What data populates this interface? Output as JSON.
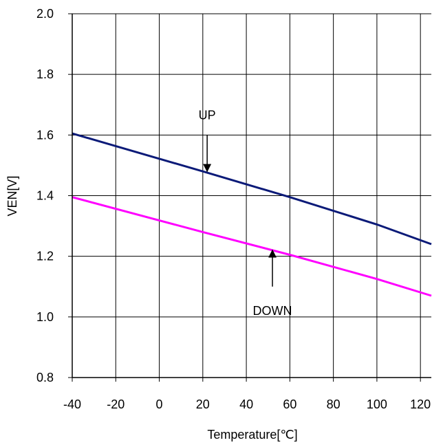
{
  "chart_data": {
    "type": "line",
    "title": "",
    "xlabel": "Temperature[℃]",
    "ylabel": "VEN[V]",
    "xlim": [
      -40,
      125
    ],
    "ylim": [
      0.8,
      2.0
    ],
    "xticks": [
      -40,
      -20,
      0,
      20,
      40,
      60,
      80,
      100,
      120
    ],
    "yticks": [
      0.8,
      1.0,
      1.2,
      1.4,
      1.6,
      1.8,
      2.0
    ],
    "xtick_labels": [
      "-40",
      "-20",
      "0",
      "20",
      "40",
      "60",
      "80",
      "100",
      "120"
    ],
    "ytick_labels": [
      "0.8",
      "1.0",
      "1.2",
      "1.4",
      "1.6",
      "1.8",
      "2.0"
    ],
    "grid": true,
    "legend": "none",
    "series": [
      {
        "name": "UP",
        "color": "#0b1a78",
        "x": [
          -40,
          20,
          60,
          100,
          125
        ],
        "y": [
          1.605,
          1.48,
          1.395,
          1.305,
          1.24
        ]
      },
      {
        "name": "DOWN",
        "color": "#ff00ff",
        "x": [
          -40,
          20,
          60,
          100,
          125
        ],
        "y": [
          1.395,
          1.28,
          1.205,
          1.125,
          1.07
        ]
      }
    ],
    "annotations": [
      {
        "text": "UP",
        "series": "UP",
        "arrow_x": 22,
        "arrow_to": 1.48,
        "arrow_from": 1.6,
        "label_y": 1.665,
        "direction": "down"
      },
      {
        "text": "DOWN",
        "series": "DOWN",
        "arrow_x": 52,
        "arrow_to": 1.22,
        "arrow_from": 1.1,
        "label_y": 1.02,
        "direction": "up"
      }
    ]
  }
}
